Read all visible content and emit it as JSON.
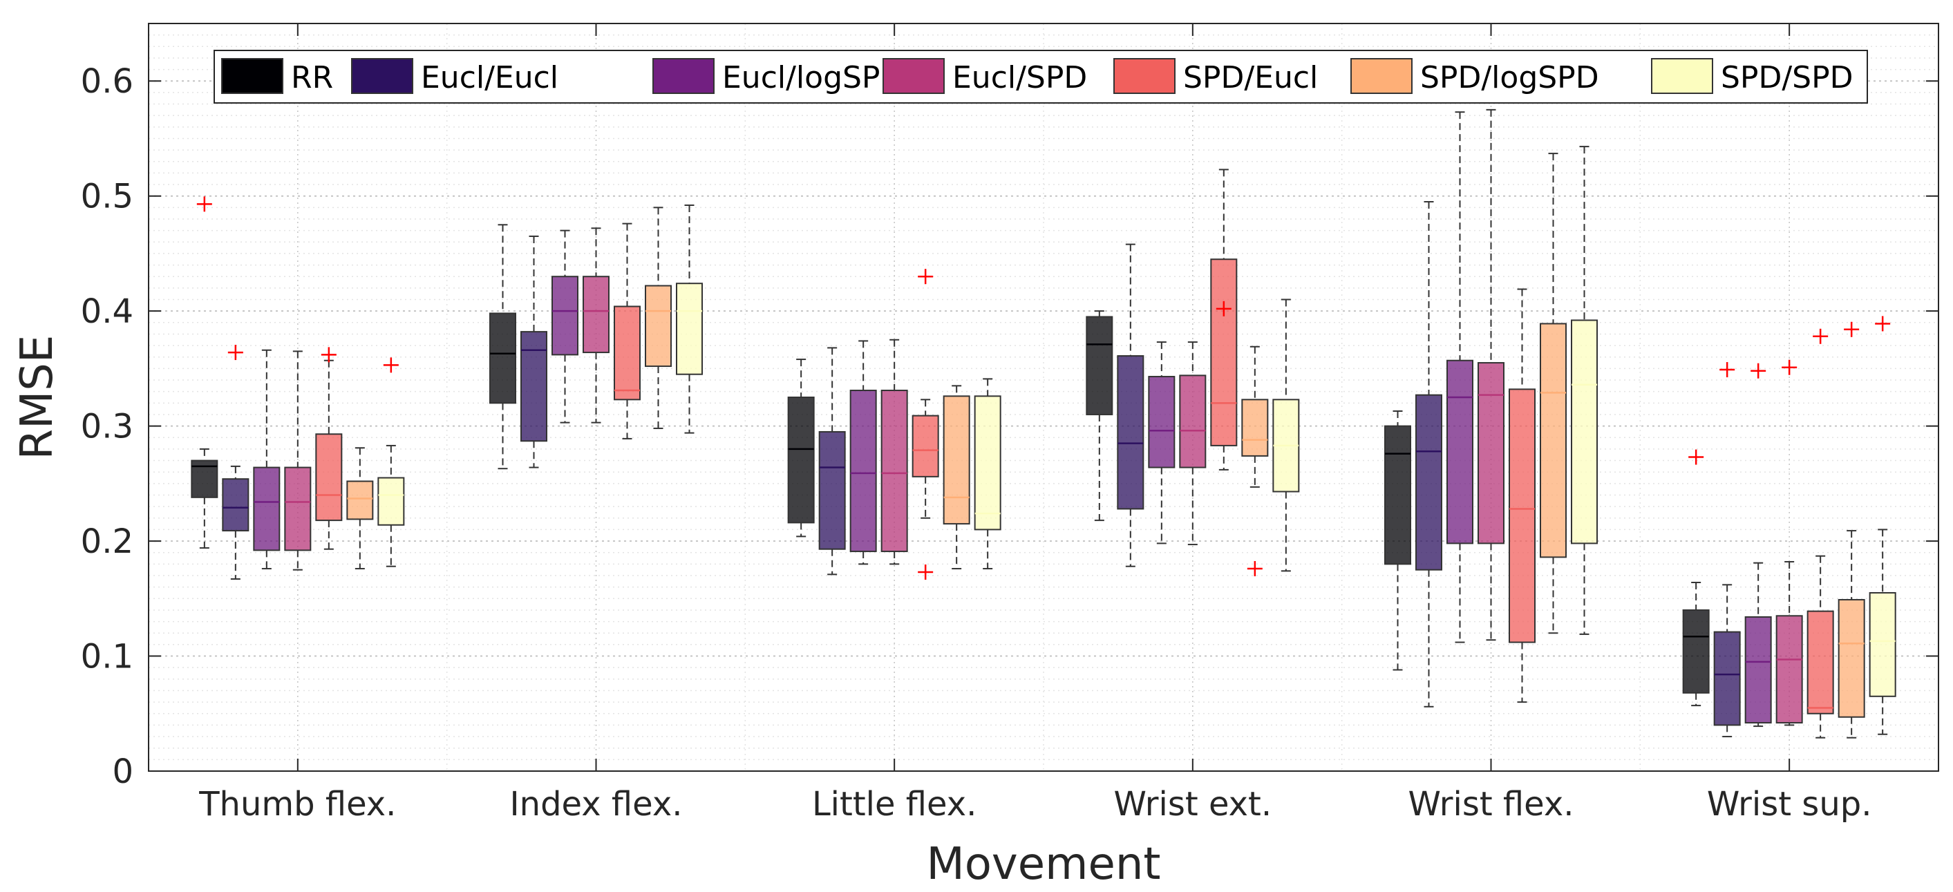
{
  "chart_data": {
    "type": "box",
    "title": "",
    "xlabel": "Movement",
    "ylabel": "RMSE",
    "ylim": [
      0,
      0.65
    ],
    "yticks": [
      0,
      0.1,
      0.2,
      0.3,
      0.4,
      0.5,
      0.6
    ],
    "ytick_labels": [
      "0",
      "0.1",
      "0.2",
      "0.3",
      "0.4",
      "0.5",
      "0.6"
    ],
    "grid": "on (major and minor, dotted)",
    "legend_position": "top",
    "categories": [
      "Thumb flex.",
      "Index flex.",
      "Little flex.",
      "Wrist ext.",
      "Wrist flex.",
      "Wrist sup."
    ],
    "series": [
      {
        "name": "RR",
        "color": "#000004",
        "boxes": [
          {
            "low": 0.194,
            "q1": 0.238,
            "median": 0.265,
            "q3": 0.27,
            "high": 0.28,
            "outliers": [
              0.493
            ]
          },
          {
            "low": 0.263,
            "q1": 0.32,
            "median": 0.363,
            "q3": 0.398,
            "high": 0.475,
            "outliers": []
          },
          {
            "low": 0.204,
            "q1": 0.216,
            "median": 0.28,
            "q3": 0.325,
            "high": 0.358,
            "outliers": []
          },
          {
            "low": 0.218,
            "q1": 0.31,
            "median": 0.371,
            "q3": 0.395,
            "high": 0.4,
            "outliers": []
          },
          {
            "low": 0.088,
            "q1": 0.18,
            "median": 0.276,
            "q3": 0.3,
            "high": 0.313,
            "outliers": []
          },
          {
            "low": 0.057,
            "q1": 0.068,
            "median": 0.117,
            "q3": 0.14,
            "high": 0.164,
            "outliers": [
              0.273
            ]
          }
        ]
      },
      {
        "name": "Eucl/Eucl",
        "color": "#2c115f",
        "boxes": [
          {
            "low": 0.167,
            "q1": 0.209,
            "median": 0.229,
            "q3": 0.254,
            "high": 0.265,
            "outliers": [
              0.364
            ]
          },
          {
            "low": 0.264,
            "q1": 0.287,
            "median": 0.366,
            "q3": 0.382,
            "high": 0.465,
            "outliers": []
          },
          {
            "low": 0.171,
            "q1": 0.193,
            "median": 0.264,
            "q3": 0.295,
            "high": 0.368,
            "outliers": []
          },
          {
            "low": 0.178,
            "q1": 0.228,
            "median": 0.285,
            "q3": 0.361,
            "high": 0.458,
            "outliers": []
          },
          {
            "low": 0.056,
            "q1": 0.175,
            "median": 0.278,
            "q3": 0.327,
            "high": 0.495,
            "outliers": []
          },
          {
            "low": 0.03,
            "q1": 0.04,
            "median": 0.084,
            "q3": 0.121,
            "high": 0.162,
            "outliers": [
              0.349
            ]
          }
        ]
      },
      {
        "name": "Eucl/logSPD",
        "color": "#721f81",
        "boxes": [
          {
            "low": 0.176,
            "q1": 0.192,
            "median": 0.234,
            "q3": 0.264,
            "high": 0.366,
            "outliers": []
          },
          {
            "low": 0.303,
            "q1": 0.362,
            "median": 0.4,
            "q3": 0.43,
            "high": 0.47,
            "outliers": []
          },
          {
            "low": 0.18,
            "q1": 0.191,
            "median": 0.259,
            "q3": 0.331,
            "high": 0.374,
            "outliers": []
          },
          {
            "low": 0.198,
            "q1": 0.264,
            "median": 0.296,
            "q3": 0.343,
            "high": 0.373,
            "outliers": []
          },
          {
            "low": 0.112,
            "q1": 0.198,
            "median": 0.325,
            "q3": 0.357,
            "high": 0.573,
            "outliers": []
          },
          {
            "low": 0.039,
            "q1": 0.042,
            "median": 0.095,
            "q3": 0.134,
            "high": 0.181,
            "outliers": [
              0.348
            ]
          }
        ]
      },
      {
        "name": "Eucl/SPD",
        "color": "#b73779",
        "boxes": [
          {
            "low": 0.175,
            "q1": 0.192,
            "median": 0.234,
            "q3": 0.264,
            "high": 0.365,
            "outliers": []
          },
          {
            "low": 0.303,
            "q1": 0.364,
            "median": 0.4,
            "q3": 0.43,
            "high": 0.472,
            "outliers": []
          },
          {
            "low": 0.18,
            "q1": 0.191,
            "median": 0.259,
            "q3": 0.331,
            "high": 0.375,
            "outliers": []
          },
          {
            "low": 0.197,
            "q1": 0.264,
            "median": 0.296,
            "q3": 0.344,
            "high": 0.373,
            "outliers": []
          },
          {
            "low": 0.114,
            "q1": 0.198,
            "median": 0.327,
            "q3": 0.355,
            "high": 0.575,
            "outliers": []
          },
          {
            "low": 0.04,
            "q1": 0.042,
            "median": 0.097,
            "q3": 0.135,
            "high": 0.182,
            "outliers": [
              0.351
            ]
          }
        ]
      },
      {
        "name": "SPD/Eucl",
        "color": "#f1605d",
        "boxes": [
          {
            "low": 0.193,
            "q1": 0.218,
            "median": 0.24,
            "q3": 0.293,
            "high": 0.357,
            "outliers": [
              0.362
            ]
          },
          {
            "low": 0.289,
            "q1": 0.323,
            "median": 0.331,
            "q3": 0.404,
            "high": 0.476,
            "outliers": []
          },
          {
            "low": 0.22,
            "q1": 0.256,
            "median": 0.279,
            "q3": 0.309,
            "high": 0.323,
            "outliers": [
              0.43,
              0.173
            ]
          },
          {
            "low": 0.262,
            "q1": 0.283,
            "median": 0.32,
            "q3": 0.445,
            "high": 0.523,
            "outliers": [
              0.402
            ]
          },
          {
            "low": 0.06,
            "q1": 0.112,
            "median": 0.228,
            "q3": 0.332,
            "high": 0.419,
            "outliers": []
          },
          {
            "low": 0.029,
            "q1": 0.05,
            "median": 0.055,
            "q3": 0.139,
            "high": 0.187,
            "outliers": [
              0.378
            ]
          }
        ]
      },
      {
        "name": "SPD/logSPD",
        "color": "#feaf77",
        "boxes": [
          {
            "low": 0.176,
            "q1": 0.219,
            "median": 0.237,
            "q3": 0.252,
            "high": 0.281,
            "outliers": []
          },
          {
            "low": 0.298,
            "q1": 0.352,
            "median": 0.4,
            "q3": 0.422,
            "high": 0.49,
            "outliers": []
          },
          {
            "low": 0.176,
            "q1": 0.215,
            "median": 0.238,
            "q3": 0.326,
            "high": 0.335,
            "outliers": []
          },
          {
            "low": 0.247,
            "q1": 0.274,
            "median": 0.288,
            "q3": 0.323,
            "high": 0.369,
            "outliers": [
              0.176
            ]
          },
          {
            "low": 0.12,
            "q1": 0.186,
            "median": 0.329,
            "q3": 0.389,
            "high": 0.537,
            "outliers": []
          },
          {
            "low": 0.029,
            "q1": 0.047,
            "median": 0.111,
            "q3": 0.149,
            "high": 0.209,
            "outliers": [
              0.384
            ]
          }
        ]
      },
      {
        "name": "SPD/SPD",
        "color": "#fcfdbf",
        "boxes": [
          {
            "low": 0.178,
            "q1": 0.214,
            "median": 0.24,
            "q3": 0.255,
            "high": 0.283,
            "outliers": [
              0.353
            ]
          },
          {
            "low": 0.294,
            "q1": 0.345,
            "median": 0.4,
            "q3": 0.424,
            "high": 0.492,
            "outliers": []
          },
          {
            "low": 0.176,
            "q1": 0.21,
            "median": 0.224,
            "q3": 0.326,
            "high": 0.341,
            "outliers": []
          },
          {
            "low": 0.174,
            "q1": 0.243,
            "median": 0.283,
            "q3": 0.323,
            "high": 0.41,
            "outliers": []
          },
          {
            "low": 0.119,
            "q1": 0.198,
            "median": 0.336,
            "q3": 0.392,
            "high": 0.543,
            "outliers": []
          },
          {
            "low": 0.032,
            "q1": 0.065,
            "median": 0.113,
            "q3": 0.155,
            "high": 0.21,
            "outliers": [
              0.389
            ]
          }
        ]
      }
    ]
  }
}
